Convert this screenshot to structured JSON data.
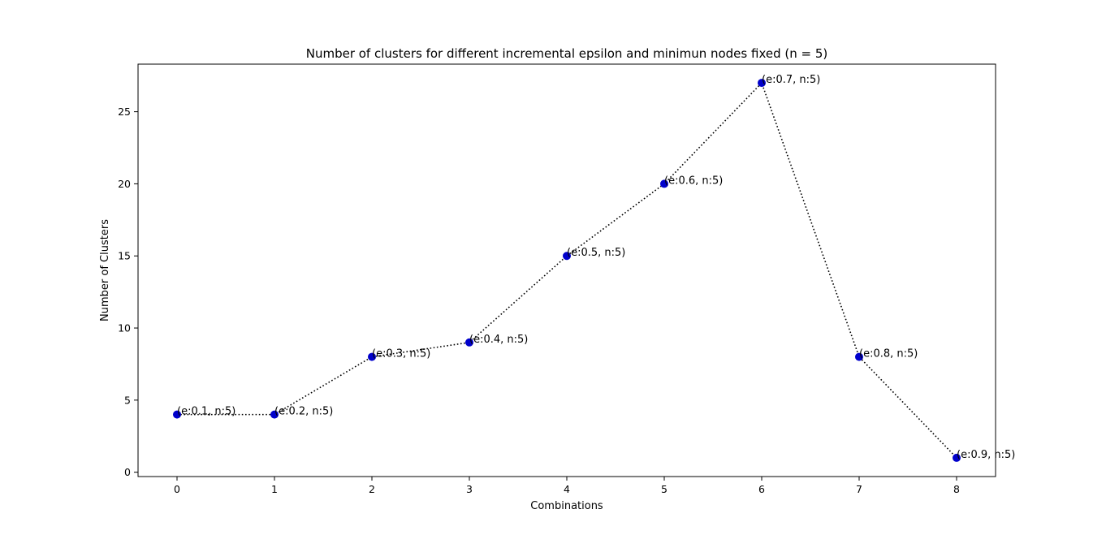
{
  "chart_data": {
    "type": "line",
    "title": "Number of clusters for different incremental epsilon and minimun nodes fixed (n = 5)",
    "xlabel": "Combinations",
    "ylabel": "Number of Clusters",
    "x": [
      0,
      1,
      2,
      3,
      4,
      5,
      6,
      7,
      8
    ],
    "y": [
      4,
      4,
      8,
      9,
      15,
      20,
      27,
      8,
      1
    ],
    "point_labels": [
      "(e:0.1, n:5)",
      "(e:0.2, n:5)",
      "(e:0.3, n:5)",
      "(e:0.4, n:5)",
      "(e:0.5, n:5)",
      "(e:0.6, n:5)",
      "(e:0.7, n:5)",
      "(e:0.8, n:5)",
      "(e:0.9, n:5)"
    ],
    "xticks": [
      0,
      1,
      2,
      3,
      4,
      5,
      6,
      7,
      8
    ],
    "yticks": [
      0,
      5,
      10,
      15,
      20,
      25
    ],
    "xlim": [
      -0.4,
      8.4
    ],
    "ylim": [
      -0.3,
      28.3
    ],
    "line_style": "dotted",
    "line_color": "#000000",
    "marker_color": "#0000cc",
    "grid": false,
    "legend": "none"
  }
}
